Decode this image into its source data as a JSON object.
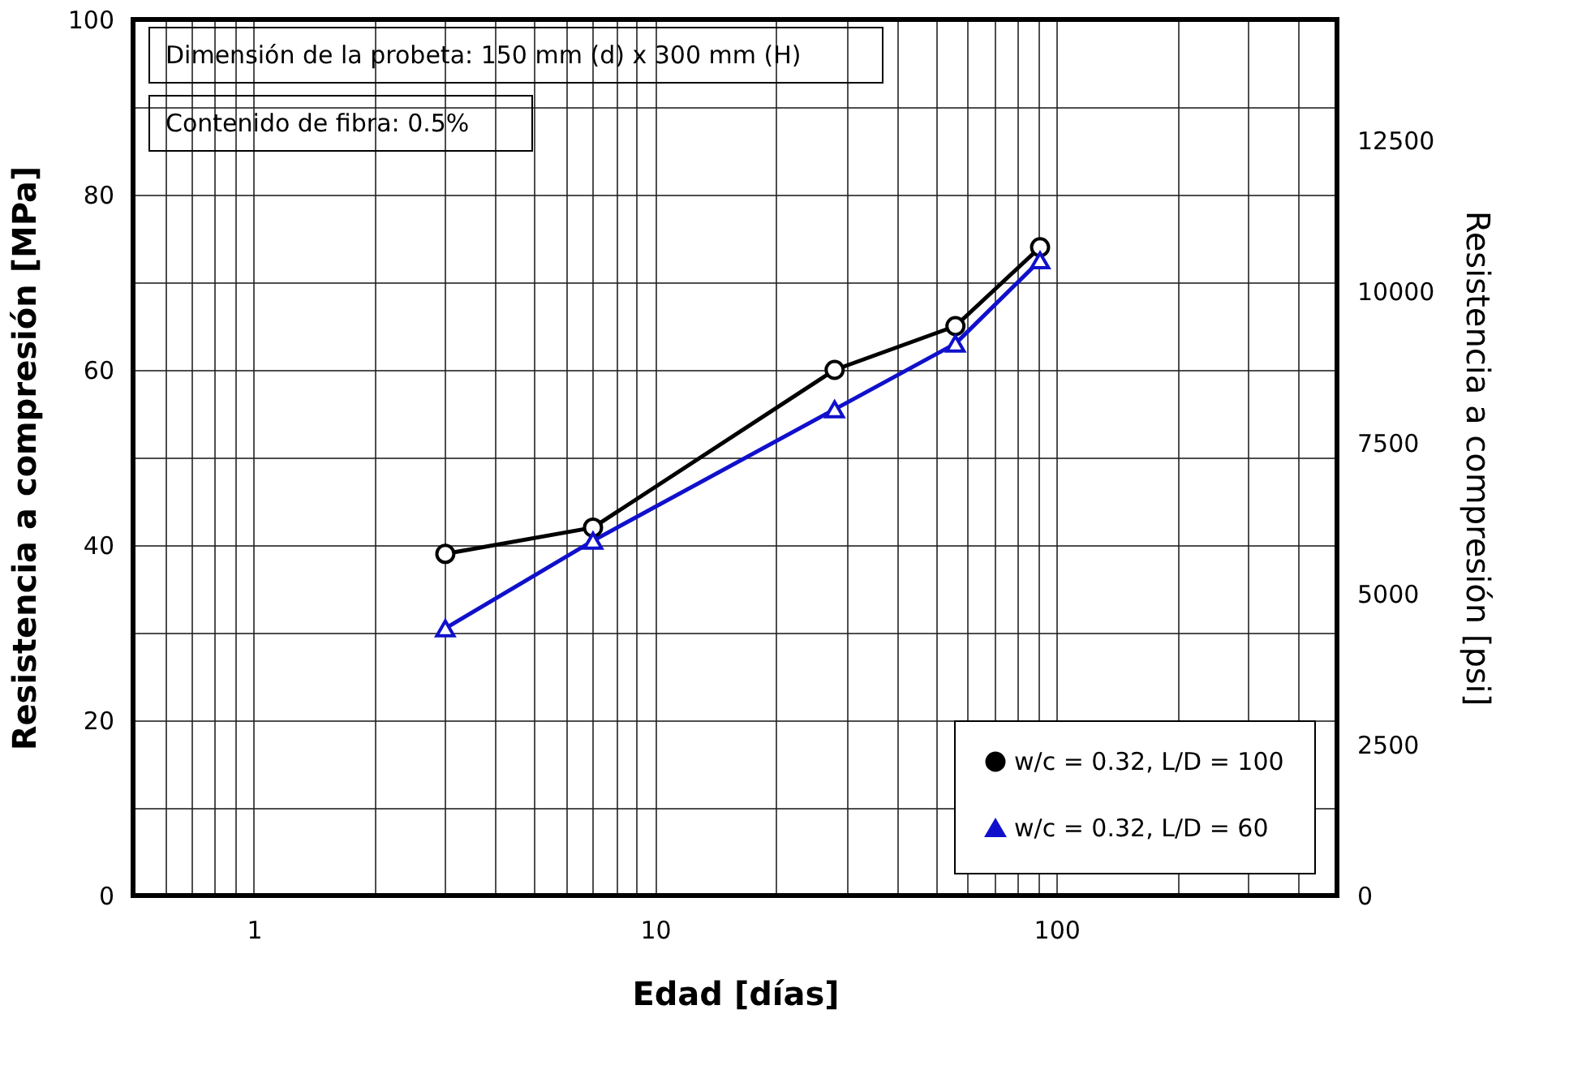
{
  "chart_data": {
    "type": "line",
    "xlabel": "Edad [días]",
    "ylabel": "Resistencia a compresión [MPa]",
    "y2label": "Resistencia a compresión [psi]",
    "annotations": [
      "Dimensión de la probeta: 150 mm (d) x 300 mm (H)",
      "Contenido de fibra: 0.5%"
    ],
    "x": [
      3,
      7,
      28,
      56,
      91
    ],
    "series": [
      {
        "name": "w/c = 0.32, L/D = 100",
        "color": "#000000",
        "marker": "circle",
        "values": [
          39,
          42,
          60,
          65,
          74
        ]
      },
      {
        "name": "w/c = 0.32, L/D = 60",
        "color": "#1010cc",
        "marker": "triangle",
        "values": [
          30.5,
          40.5,
          55.5,
          63,
          72.5
        ]
      }
    ],
    "log": "x",
    "xlim": [
      0.5,
      500
    ],
    "xticks": [
      {
        "value": 0.5,
        "label": null
      },
      {
        "value": 0.6,
        "label": null
      },
      {
        "value": 0.7,
        "label": null
      },
      {
        "value": 0.8,
        "label": null
      },
      {
        "value": 0.9,
        "label": null
      },
      1,
      {
        "value": 2,
        "label": null
      },
      {
        "value": 3,
        "label": null
      },
      {
        "value": 4,
        "label": null
      },
      {
        "value": 5,
        "label": null
      },
      {
        "value": 6,
        "label": null
      },
      {
        "value": 7,
        "label": null
      },
      {
        "value": 8,
        "label": null
      },
      {
        "value": 9,
        "label": null
      },
      10,
      {
        "value": 20,
        "label": null
      },
      {
        "value": 30,
        "label": null
      },
      {
        "value": 40,
        "label": null
      },
      {
        "value": 50,
        "label": null
      },
      {
        "value": 60,
        "label": null
      },
      {
        "value": 70,
        "label": null
      },
      {
        "value": 80,
        "label": null
      },
      {
        "value": 90,
        "label": null
      },
      100,
      {
        "value": 200,
        "label": null
      },
      {
        "value": 300,
        "label": null
      },
      {
        "value": 400,
        "label": null
      },
      {
        "value": 500,
        "label": null
      }
    ],
    "ylim": [
      0,
      100
    ],
    "yticks": [
      0,
      {
        "value": 10,
        "label": null
      },
      20,
      {
        "value": 30,
        "label": null
      },
      40,
      {
        "value": 50,
        "label": null
      },
      60,
      {
        "value": 70,
        "label": null
      },
      80,
      {
        "value": 90,
        "label": null
      },
      100
    ],
    "y2lim": [
      0,
      14503.8
    ],
    "y2ticks": [
      0,
      2500,
      5000,
      7500,
      10000,
      12500
    ],
    "grid": true,
    "legend": "bottom right",
    "line_style": "solid"
  }
}
